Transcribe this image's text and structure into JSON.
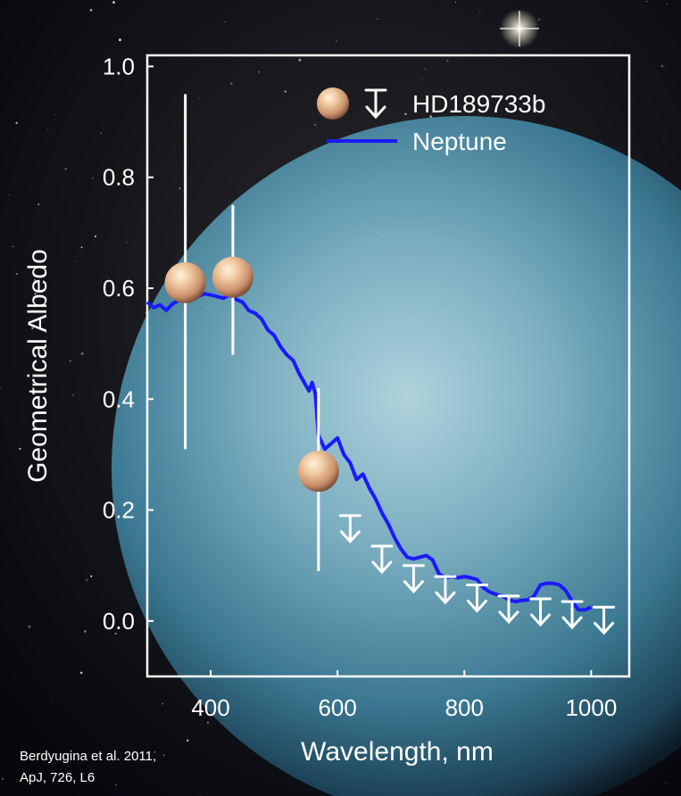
{
  "chart_data": {
    "type": "scatter",
    "title": "",
    "xlabel": "Wavelength, nm",
    "ylabel": "Geometrical Albedo",
    "xlim": [
      300,
      1060
    ],
    "ylim": [
      -0.1,
      1.02
    ],
    "x_ticks": [
      400,
      600,
      800,
      1000
    ],
    "y_ticks": [
      0.0,
      0.2,
      0.4,
      0.6,
      0.8,
      1.0
    ],
    "x_tick_labels": [
      "400",
      "600",
      "800",
      "1000"
    ],
    "y_tick_labels": [
      "0.0",
      "0.2",
      "0.4",
      "0.6",
      "0.8",
      "1.0"
    ],
    "grid": false,
    "legend_placement": "top-right",
    "series": [
      {
        "name": "HD189733b",
        "kind": "points",
        "marker": "planet-disc",
        "points": [
          {
            "x": 360,
            "y": 0.61,
            "err_low": 0.31,
            "err_high": 0.95
          },
          {
            "x": 435,
            "y": 0.62,
            "err_low": 0.48,
            "err_high": 0.75
          },
          {
            "x": 570,
            "y": 0.27,
            "err_low": 0.09,
            "err_high": 0.42
          }
        ]
      },
      {
        "name": "HD189733b",
        "kind": "upper-limits",
        "marker": "arrow-down",
        "points": [
          {
            "x": 620,
            "y": 0.19
          },
          {
            "x": 670,
            "y": 0.135
          },
          {
            "x": 720,
            "y": 0.1
          },
          {
            "x": 770,
            "y": 0.08
          },
          {
            "x": 820,
            "y": 0.065
          },
          {
            "x": 870,
            "y": 0.045
          },
          {
            "x": 920,
            "y": 0.04
          },
          {
            "x": 970,
            "y": 0.035
          },
          {
            "x": 1020,
            "y": 0.025
          }
        ]
      },
      {
        "name": "Neptune",
        "kind": "line",
        "color": "#1a1aff",
        "x": [
          300,
          310,
          320,
          330,
          340,
          350,
          360,
          370,
          380,
          390,
          400,
          410,
          420,
          430,
          440,
          450,
          460,
          470,
          480,
          490,
          500,
          510,
          520,
          530,
          540,
          550,
          555,
          560,
          565,
          570,
          580,
          590,
          600,
          610,
          620,
          630,
          640,
          650,
          660,
          670,
          680,
          690,
          700,
          710,
          720,
          730,
          740,
          750,
          760,
          770,
          780,
          790,
          800,
          810,
          820,
          830,
          840,
          850,
          860,
          870,
          880,
          890,
          900,
          910,
          920,
          930,
          940,
          950,
          960,
          970,
          980,
          990,
          1000
        ],
        "y": [
          0.575,
          0.565,
          0.57,
          0.56,
          0.572,
          0.578,
          0.582,
          0.58,
          0.585,
          0.59,
          0.588,
          0.585,
          0.582,
          0.588,
          0.58,
          0.575,
          0.56,
          0.555,
          0.545,
          0.525,
          0.515,
          0.495,
          0.48,
          0.47,
          0.445,
          0.425,
          0.415,
          0.43,
          0.41,
          0.335,
          0.31,
          0.32,
          0.33,
          0.3,
          0.285,
          0.255,
          0.265,
          0.24,
          0.22,
          0.195,
          0.175,
          0.15,
          0.13,
          0.115,
          0.112,
          0.115,
          0.118,
          0.11,
          0.085,
          0.078,
          0.08,
          0.078,
          0.08,
          0.078,
          0.075,
          0.06,
          0.052,
          0.048,
          0.045,
          0.038,
          0.035,
          0.037,
          0.038,
          0.045,
          0.065,
          0.068,
          0.068,
          0.065,
          0.055,
          0.035,
          0.02,
          0.02,
          0.025
        ]
      }
    ],
    "legend": [
      {
        "label": "HD189733b",
        "symbol": "planet-disc-and-arrow"
      },
      {
        "label": "Neptune",
        "symbol": "line",
        "color": "#1a1aff"
      }
    ]
  },
  "citation": {
    "line1": "Berdyugina et al. 2011,",
    "line2": "ApJ, 726, L6"
  },
  "colors": {
    "axes": "#ffffff",
    "text": "#ffffff",
    "neptune_line": "#1a1aff",
    "planet_marker": "#e0b28a",
    "background": "#05070d",
    "planet_background": "#4f95ad"
  }
}
